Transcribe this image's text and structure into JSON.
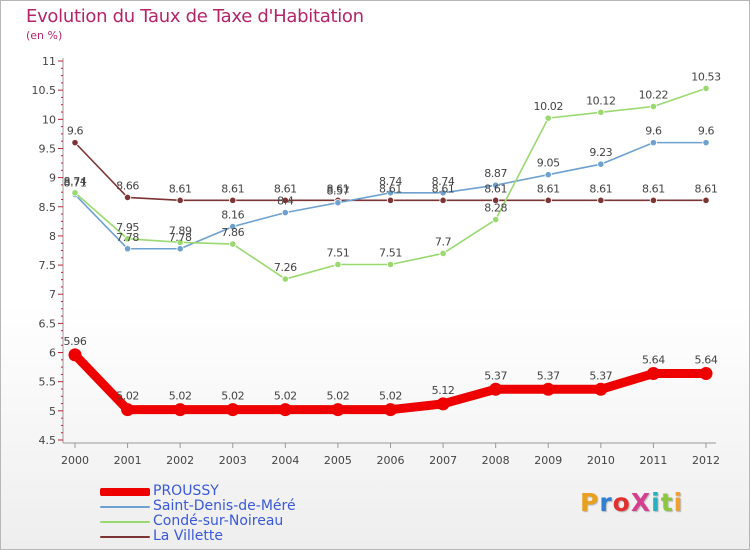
{
  "header": {
    "title": "Evolution du Taux de Taxe d'Habitation",
    "subtitle": "(en %)"
  },
  "logo": {
    "text": "ProXiti",
    "colors": [
      "#e8a020",
      "#2f7fd3",
      "#e23030",
      "#d63e8f",
      "#26b0c0",
      "#8dc63f",
      "#f0a030"
    ]
  },
  "chart_data": {
    "type": "line",
    "x": [
      2000,
      2001,
      2002,
      2003,
      2004,
      2005,
      2006,
      2007,
      2008,
      2009,
      2010,
      2011,
      2012
    ],
    "ylim": [
      4.5,
      11
    ],
    "yticks": [
      4.5,
      5,
      5.5,
      6,
      6.5,
      7,
      7.5,
      8,
      8.5,
      9,
      9.5,
      10,
      10.5,
      11
    ],
    "ytick_labels": [
      "4.5",
      "5",
      "5.5",
      "6",
      "6.5",
      "7",
      "7.5",
      "8",
      "8.5",
      "9",
      "9.5",
      "10",
      "10.5",
      "11"
    ],
    "grid": false,
    "legend_position": "bottom-left",
    "series": [
      {
        "name": "PROUSSY",
        "color": "#ee0000",
        "values": [
          5.96,
          5.02,
          5.02,
          5.02,
          5.02,
          5.02,
          5.02,
          5.12,
          5.37,
          5.37,
          5.37,
          5.64,
          5.64
        ],
        "labels": [
          "5.96",
          "5.02",
          "5.02",
          "5.02",
          "5.02",
          "5.02",
          "5.02",
          "5.12",
          "5.37",
          "5.37",
          "5.37",
          "5.64",
          "5.64"
        ]
      },
      {
        "name": "Saint-Denis-de-Méré",
        "color": "#6ea1cf",
        "values": [
          8.71,
          7.78,
          7.78,
          8.16,
          8.4,
          8.57,
          8.74,
          8.74,
          8.87,
          9.05,
          9.23,
          9.6,
          9.6
        ],
        "labels": [
          "8.71",
          "7.78",
          "7.78",
          "8.16",
          "8.4",
          "8.57",
          "8.74",
          "8.74",
          "8.87",
          "9.05",
          "9.23",
          "9.6",
          "9.6"
        ]
      },
      {
        "name": "Condé-sur-Noireau",
        "color": "#9ad970",
        "values": [
          8.74,
          7.95,
          7.89,
          7.86,
          7.26,
          7.51,
          7.51,
          7.7,
          8.28,
          10.02,
          10.12,
          10.22,
          10.53
        ],
        "labels": [
          "8.74",
          "7.95",
          "7.89",
          "7.86",
          "7.26",
          "7.51",
          "7.51",
          "7.7",
          "8.28",
          "10.02",
          "10.12",
          "10.22",
          "10.53"
        ]
      },
      {
        "name": "La Villette",
        "color": "#7d3434",
        "values": [
          9.6,
          8.66,
          8.61,
          8.61,
          8.61,
          8.61,
          8.61,
          8.61,
          8.61,
          8.61,
          8.61,
          8.61,
          8.61
        ],
        "labels": [
          "9.6",
          "8.66",
          "8.61",
          "8.61",
          "8.61",
          "8.61",
          "8.61",
          "8.61",
          "8.61",
          "8.61",
          "8.61",
          "8.61",
          "8.61"
        ]
      }
    ]
  }
}
